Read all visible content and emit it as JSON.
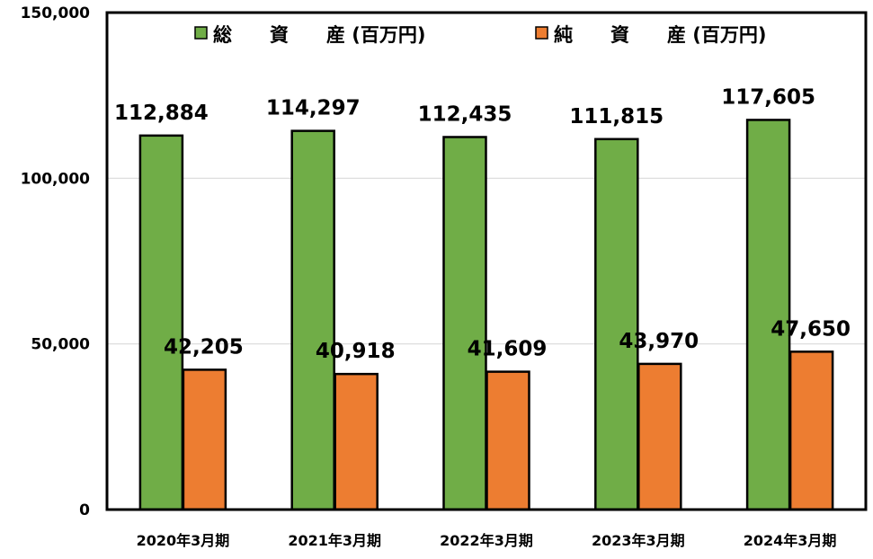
{
  "chart_data": {
    "type": "bar",
    "categories": [
      "2020年3月期",
      "2021年3月期",
      "2022年3月期",
      "2023年3月期",
      "2024年3月期"
    ],
    "series": [
      {
        "name": "総　　資　　産 (百万円)",
        "color": "#70AD47",
        "values": [
          112884,
          114297,
          112435,
          111815,
          117605
        ],
        "labels": [
          "112,884",
          "114,297",
          "112,435",
          "111,815",
          "117,605"
        ]
      },
      {
        "name": "純　　資　　産 (百万円)",
        "color": "#ED7D31",
        "values": [
          42205,
          40918,
          41609,
          43970,
          47650
        ],
        "labels": [
          "42,205",
          "40,918",
          "41,609",
          "43,970",
          "47,650"
        ]
      }
    ],
    "ylim": [
      0,
      150000
    ],
    "yticks": [
      0,
      50000,
      100000,
      150000
    ],
    "ytick_labels": [
      "0",
      "50,000",
      "100,000",
      "150,000"
    ],
    "grid": true,
    "legend_position": "top",
    "title": "",
    "xlabel": "",
    "ylabel": ""
  }
}
